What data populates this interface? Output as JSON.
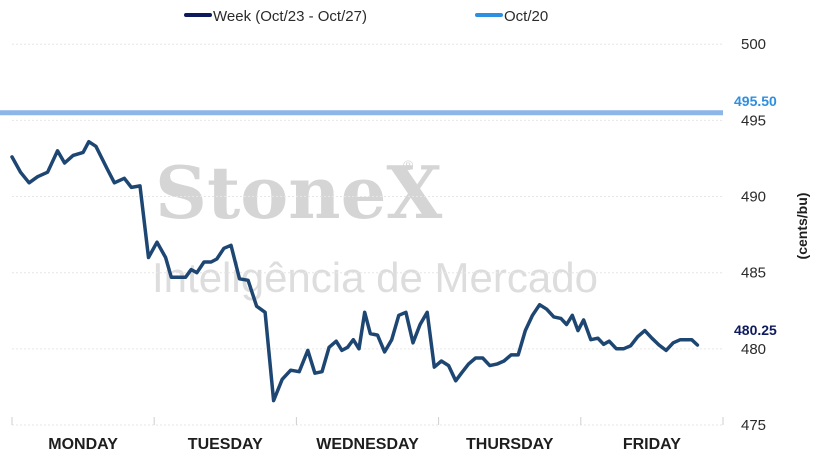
{
  "chart_data": {
    "type": "line",
    "categories": [
      "MONDAY",
      "TUESDAY",
      "WEDNESDAY",
      "THURSDAY",
      "FRIDAY"
    ],
    "ylabel": "(cents/bu)",
    "ylim": [
      475,
      501
    ],
    "yticks": [
      475,
      480,
      485,
      490,
      495,
      500
    ],
    "grid": true,
    "legend_position": "top",
    "series": [
      {
        "name": "Week (Oct/23 - Oct/27)",
        "color": "#1e4672",
        "legend_color": "#0e1a5e",
        "last_label": "480.25",
        "last_label_color": "#0e1a5e",
        "x": [
          0,
          0.6,
          1.2,
          1.8,
          2.5,
          3.2,
          3.7,
          4.3,
          5.0,
          5.4,
          5.9,
          6.7,
          7.2,
          7.9,
          8.4,
          9.0,
          9.6,
          10.2,
          10.8,
          11.2,
          11.6,
          12.2,
          12.6,
          13.0,
          13.5,
          14.0,
          14.4,
          14.9,
          15.4,
          16.0,
          16.6,
          17.2,
          17.8,
          18.4,
          19.0,
          19.6,
          20.2,
          20.8,
          21.3,
          21.8,
          22.3,
          22.8,
          23.2,
          23.6,
          24.0,
          24.4,
          24.8,
          25.2,
          25.7,
          26.2,
          26.7,
          27.2,
          27.7,
          28.2,
          28.7,
          29.2,
          29.7,
          30.2,
          30.7,
          31.2,
          31.6,
          32.1,
          32.6,
          33.1,
          33.6,
          34.1,
          34.6,
          35.1,
          35.6,
          36.1,
          36.6,
          37.1,
          37.6,
          38.1,
          38.6,
          39.0,
          39.4,
          39.8,
          40.2,
          40.7,
          41.2,
          41.6,
          42.0,
          42.5,
          43.0,
          43.5,
          44.0,
          44.5,
          45.0,
          45.5,
          46.0,
          46.5,
          47.0,
          47.4,
          47.8,
          48.2
        ],
        "values": [
          492.6,
          491.6,
          490.9,
          491.3,
          491.6,
          493.0,
          492.2,
          492.7,
          492.9,
          493.6,
          493.3,
          491.8,
          490.9,
          491.2,
          490.6,
          490.7,
          486.0,
          487.0,
          486.0,
          484.7,
          484.7,
          484.7,
          485.2,
          485.0,
          485.7,
          485.7,
          485.9,
          486.6,
          486.8,
          484.6,
          484.5,
          482.8,
          482.4,
          476.6,
          478.0,
          478.6,
          478.5,
          479.9,
          478.4,
          478.5,
          480.1,
          480.5,
          479.9,
          480.1,
          480.6,
          480.0,
          482.4,
          481.0,
          480.9,
          479.8,
          480.6,
          482.2,
          482.4,
          480.4,
          481.6,
          482.4,
          478.8,
          479.2,
          478.9,
          477.9,
          478.4,
          479.0,
          479.4,
          479.4,
          478.9,
          479.0,
          479.2,
          479.6,
          479.6,
          481.2,
          482.2,
          482.9,
          482.6,
          482.1,
          482.0,
          481.6,
          482.2,
          481.2,
          481.9,
          480.6,
          480.7,
          480.3,
          480.5,
          480.0,
          480.0,
          480.2,
          480.8,
          481.2,
          480.7,
          480.25,
          479.9,
          480.4,
          480.6,
          480.6,
          480.6,
          480.25
        ]
      },
      {
        "name": "Oct/20",
        "color": "#8db6e8",
        "legend_color": "#2e8fe0",
        "constant_value": 495.5,
        "last_label": "495.50",
        "last_label_color": "#2e8fe0"
      }
    ]
  },
  "watermark": {
    "brand": "StoneX",
    "tagline": "Inteligência de Mercado"
  }
}
